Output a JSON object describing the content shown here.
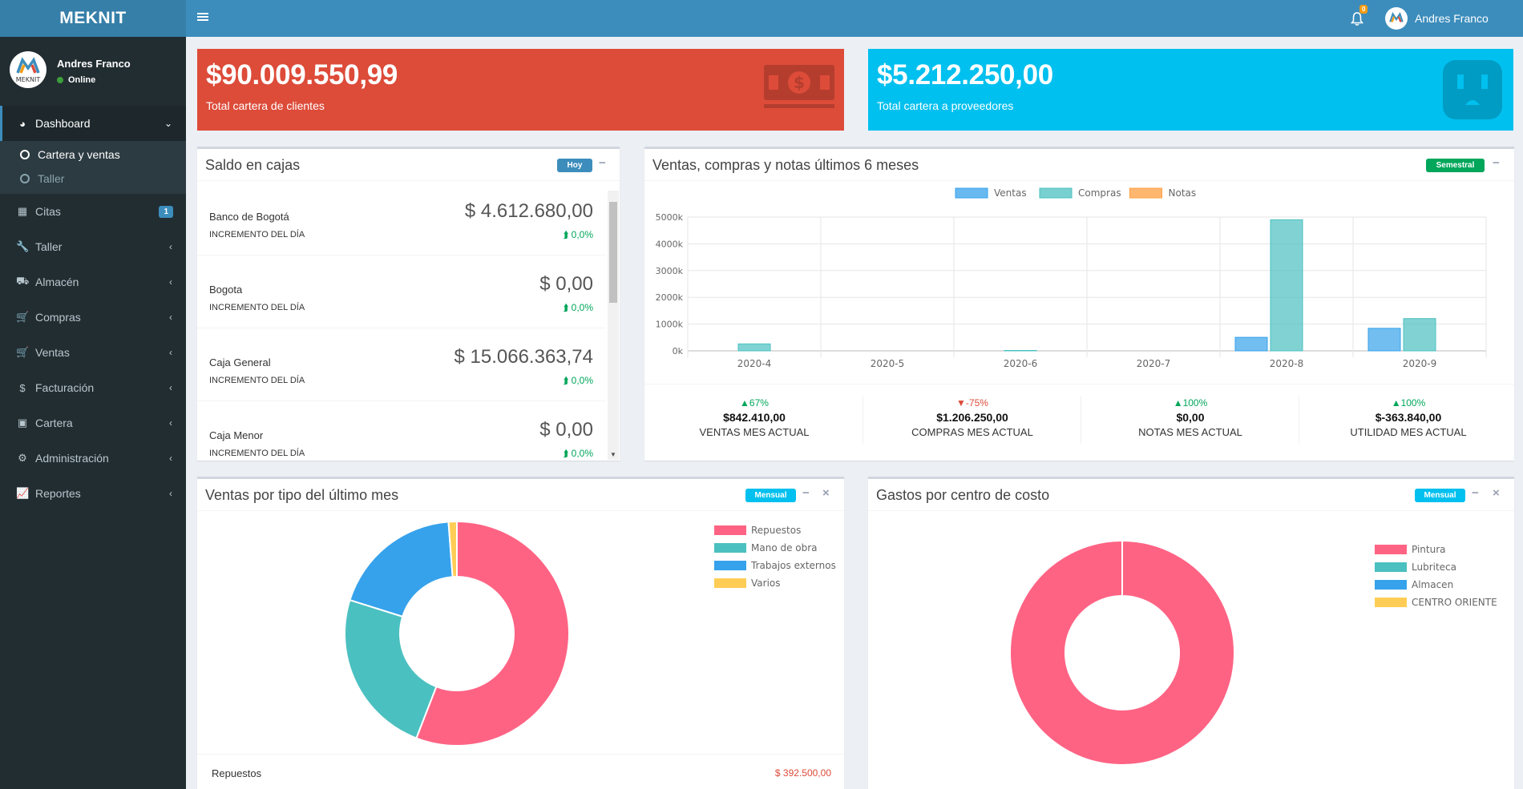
{
  "app": {
    "brand": "MEKNIT",
    "logo_text": "MEKNIT"
  },
  "header": {
    "notification_count": "0",
    "user_name": "Andres Franco"
  },
  "sidebar": {
    "user": {
      "name": "Andres Franco",
      "status": "Online"
    },
    "items": [
      {
        "label": "Dashboard",
        "icon": "dashboard-icon",
        "glyph": "◕",
        "chevron": "⌄"
      },
      {
        "label": "Citas",
        "icon": "calendar-icon",
        "glyph": "▦",
        "badge": "1"
      },
      {
        "label": "Taller",
        "icon": "wrench-icon",
        "glyph": "🔧",
        "chevron": "‹"
      },
      {
        "label": "Almacén",
        "icon": "truck-icon",
        "glyph": "⛟",
        "chevron": "‹"
      },
      {
        "label": "Compras",
        "icon": "cart-icon",
        "glyph": "🛒",
        "chevron": "‹"
      },
      {
        "label": "Ventas",
        "icon": "cart-arrow-icon",
        "glyph": "🛒",
        "chevron": "‹"
      },
      {
        "label": "Facturación",
        "icon": "dollar-icon",
        "glyph": "$",
        "chevron": "‹"
      },
      {
        "label": "Cartera",
        "icon": "money-icon",
        "glyph": "▣",
        "chevron": "‹"
      },
      {
        "label": "Administración",
        "icon": "cogs-icon",
        "glyph": "⚙",
        "chevron": "‹"
      },
      {
        "label": "Reportes",
        "icon": "line-chart-icon",
        "glyph": "📈",
        "chevron": "‹"
      }
    ],
    "submenu": [
      {
        "label": "Cartera y ventas"
      },
      {
        "label": "Taller"
      }
    ]
  },
  "info_boxes": {
    "clientes": {
      "amount": "$90.009.550,99",
      "label": "Total cartera de clientes",
      "icon": "money-bill-icon",
      "color": "#dd4b39"
    },
    "proveedores": {
      "amount": "$5.212.250,00",
      "label": "Total cartera a proveedores",
      "icon": "plug-icon",
      "color": "#00c0ef"
    }
  },
  "saldo_cajas": {
    "title": "Saldo en cajas",
    "pill": "Hoy",
    "collapse": "−",
    "rows": [
      {
        "name": "Banco de Bogotá",
        "sub": "INCREMENTO DEL DÍA",
        "amount": "$ 4.612.680,00",
        "pct": "⮭ 0,0%"
      },
      {
        "name": "Bogota",
        "sub": "INCREMENTO DEL DÍA",
        "amount": "$ 0,00",
        "pct": "⮭ 0,0%"
      },
      {
        "name": "Caja General",
        "sub": "INCREMENTO DEL DÍA",
        "amount": "$ 15.066.363,74",
        "pct": "⮭ 0,0%"
      },
      {
        "name": "Caja Menor",
        "sub": "INCREMENTO DEL DÍA",
        "amount": "$ 0,00",
        "pct": "⮭ 0,0%"
      }
    ]
  },
  "ventas_chart_box": {
    "title": "Ventas, compras y notas últimos 6 meses",
    "pill": "Semestral",
    "collapse": "−",
    "stats": [
      {
        "pct": "▲67%",
        "trend": "up",
        "value": "$842.410,00",
        "label": "VENTAS MES ACTUAL"
      },
      {
        "pct": "▼-75%",
        "trend": "down",
        "value": "$1.206.250,00",
        "label": "COMPRAS MES ACTUAL"
      },
      {
        "pct": "▲100%",
        "trend": "up",
        "value": "$0,00",
        "label": "NOTAS MES ACTUAL"
      },
      {
        "pct": "▲100%",
        "trend": "up",
        "value": "$-363.840,00",
        "label": "UTILIDAD MES ACTUAL"
      }
    ]
  },
  "ventas_tipo_box": {
    "title": "Ventas por tipo del último mes",
    "pill": "Mensual",
    "collapse": "−",
    "close": "×",
    "footer": {
      "label": "Repuestos",
      "value": "$ 392.500,00"
    }
  },
  "gastos_box": {
    "title": "Gastos por centro de costo",
    "pill": "Mensual",
    "collapse": "−",
    "close": "×"
  },
  "chart_data": [
    {
      "type": "bar",
      "categories": [
        "2020-4",
        "2020-5",
        "2020-6",
        "2020-7",
        "2020-8",
        "2020-9"
      ],
      "series": [
        {
          "name": "Ventas",
          "color": "#36a2eb",
          "values": [
            0,
            0,
            0,
            0,
            505000,
            842410
          ]
        },
        {
          "name": "Compras",
          "color": "#4bc0c0",
          "values": [
            260000,
            0,
            15000,
            0,
            4900000,
            1206250
          ]
        },
        {
          "name": "Notas",
          "color": "#ff9f40",
          "values": [
            0,
            0,
            0,
            0,
            0,
            0
          ]
        }
      ],
      "yticks": [
        "0k",
        "1000k",
        "2000k",
        "3000k",
        "4000k",
        "5000k"
      ],
      "ylim": [
        0,
        5000000
      ],
      "grid": true,
      "legend": "top"
    },
    {
      "type": "pie",
      "donut": true,
      "labels": [
        "Repuestos",
        "Mano de obra",
        "Trabajos externos",
        "Varios"
      ],
      "values": [
        56,
        24,
        19,
        1.2
      ],
      "colors": [
        "#ff6384",
        "#4bc0c0",
        "#36a2eb",
        "#ffcd56"
      ],
      "legend": "top-right"
    },
    {
      "type": "pie",
      "donut": true,
      "labels": [
        "Pintura",
        "Lubriteca",
        "Almacen",
        "CENTRO ORIENTE"
      ],
      "values": [
        100,
        0,
        0,
        0
      ],
      "colors": [
        "#ff6384",
        "#4bc0c0",
        "#36a2eb",
        "#ffcd56"
      ],
      "legend": "top-right"
    }
  ]
}
